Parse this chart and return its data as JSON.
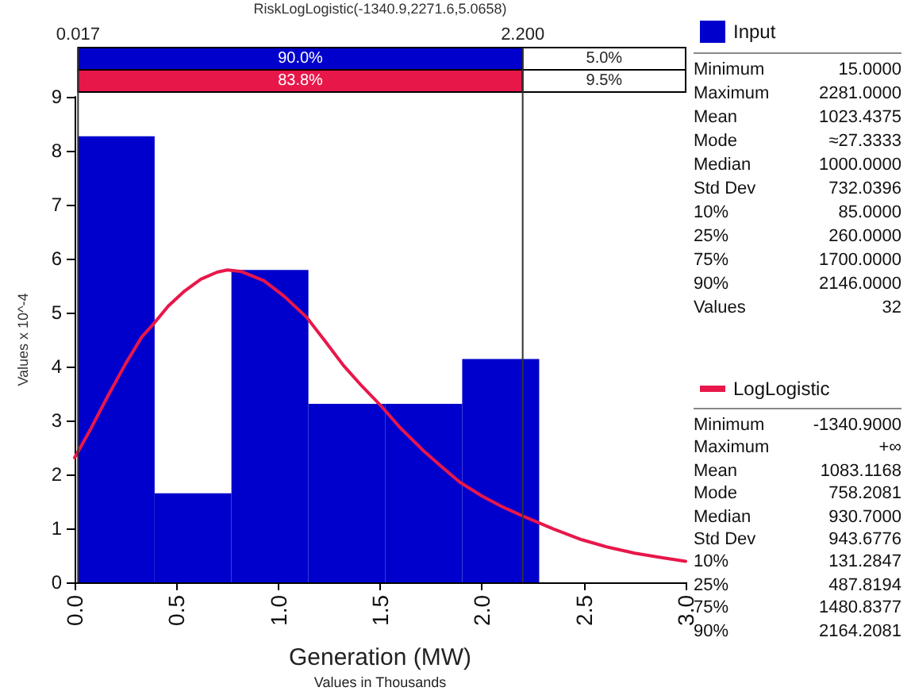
{
  "chart_data": {
    "type": "histogram",
    "title": "RiskLogLogistic(-1340.9,2271.6,5.0658)",
    "xlabel": "Generation (MW)",
    "ylabel": "Values x 10^-4",
    "series": [
      {
        "name": "Input",
        "color": "#0000cc",
        "bins": [
          0.015,
          0.393,
          0.77,
          1.148,
          1.526,
          1.903,
          2.281
        ],
        "values": [
          8.27,
          1.65,
          5.79,
          3.31,
          3.31,
          4.14
        ]
      },
      {
        "name": "LogLogistic",
        "type": "line",
        "color": "#e8174a",
        "x": [
          0,
          0.08,
          0.16,
          0.25,
          0.33,
          0.39,
          0.46,
          0.54,
          0.62,
          0.7,
          0.75,
          0.82,
          0.93,
          1.03,
          1.14,
          1.23,
          1.32,
          1.41,
          1.5,
          1.6,
          1.71,
          1.8,
          1.89,
          2.0,
          2.1,
          2.2,
          2.35,
          2.49,
          2.62,
          2.75,
          2.88,
          3.0
        ],
        "values": [
          2.31,
          2.85,
          3.43,
          4.05,
          4.55,
          4.8,
          5.12,
          5.4,
          5.62,
          5.75,
          5.79,
          5.76,
          5.59,
          5.3,
          4.91,
          4.47,
          4.02,
          3.64,
          3.29,
          2.86,
          2.45,
          2.15,
          1.86,
          1.6,
          1.4,
          1.23,
          0.99,
          0.79,
          0.65,
          0.54,
          0.46,
          0.39
        ]
      }
    ],
    "xlim": [
      0,
      3
    ],
    "xticks": [
      {
        "value": 0,
        "label": "0.0"
      },
      {
        "value": 0.5,
        "label": "0.5"
      },
      {
        "value": 1,
        "label": "1.0"
      },
      {
        "value": 1.5,
        "label": "1.5"
      },
      {
        "value": 2,
        "label": "2.0"
      },
      {
        "value": 2.5,
        "label": "2.5"
      },
      {
        "value": 3,
        "label": "3.0"
      }
    ],
    "ylim": [
      0,
      9
    ],
    "yticks": [
      0,
      1,
      2,
      3,
      4,
      5,
      6,
      7,
      8,
      9
    ],
    "ref_lines": [
      {
        "axis": "x",
        "value": 0.017,
        "label": "0.017"
      },
      {
        "axis": "x",
        "value": 2.2,
        "label": "2.200"
      }
    ],
    "annotations": [
      "90.0%",
      "5.0%",
      "83.8%",
      "9.5%",
      "Minimum 15.0000",
      "Maximum 2281.0000",
      "Mean 1023.4375",
      "Mode ≈27.3333",
      "Median 1000.0000",
      "Std Dev 732.0396",
      "10% 85.0000",
      "25% 260.0000",
      "75% 1700.0000",
      "90% 2146.0000",
      "Values 32",
      "Minimum -1340.9000",
      "Maximum +∞",
      "Mean 1083.1168",
      "Mode 758.2081",
      "Median 930.7000",
      "Std Dev 943.6776",
      "10% 131.2847",
      "25% 487.8194",
      "75% 1480.8377",
      "90% 2164.2081",
      "Values in Thousands"
    ],
    "grid": false,
    "legend": "right"
  }
}
